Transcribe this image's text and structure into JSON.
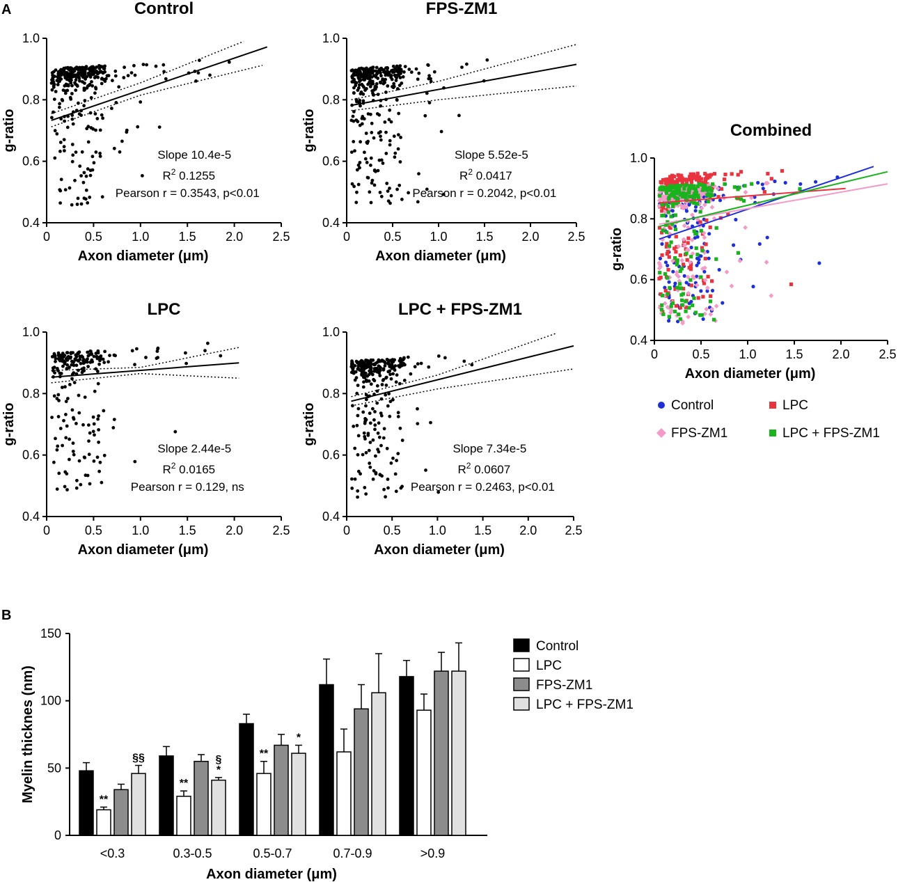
{
  "panels": {
    "a": "A",
    "b": "B"
  },
  "chart_data": [
    {
      "type": "scatter",
      "title": "Control",
      "xlabel": "Axon diameter (μm)",
      "ylabel": "g-ratio",
      "xlim": [
        0,
        2.5
      ],
      "ylim": [
        0.4,
        1.0
      ],
      "xticks": [
        "0",
        "0.5",
        "1.0",
        "1.5",
        "2.0",
        "2.5"
      ],
      "yticks": [
        "0.4",
        "0.6",
        "0.8",
        "1.0"
      ],
      "fit": {
        "x": [
          0.05,
          2.35
        ],
        "y": [
          0.733,
          0.972
        ]
      },
      "ci_upper": {
        "x": [
          0.05,
          1.0,
          2.1
        ],
        "y": [
          0.755,
          0.855,
          0.99
        ]
      },
      "ci_lower": {
        "x": [
          0.05,
          1.0,
          2.3
        ],
        "y": [
          0.712,
          0.815,
          0.912
        ]
      },
      "stats": {
        "slope_label": "Slope",
        "slope": "10.4e-5",
        "r2_label": "R",
        "r2_exp": "2",
        "r2": "0.1255",
        "pearson": "Pearson r = 0.3543, p<0.01"
      },
      "n_points": 330,
      "x_mean": 0.5,
      "y_mean": 0.8,
      "seed": 11
    },
    {
      "type": "scatter",
      "title": "FPS-ZM1",
      "xlabel": "Axon diameter (μm)",
      "ylabel": "g-ratio",
      "xlim": [
        0,
        2.5
      ],
      "ylim": [
        0.4,
        1.0
      ],
      "xticks": [
        "0",
        "0.5",
        "1.0",
        "1.5",
        "2.0",
        "2.5"
      ],
      "yticks": [
        "0.4",
        "0.6",
        "0.8",
        "1.0"
      ],
      "fit": {
        "x": [
          0.05,
          2.5
        ],
        "y": [
          0.782,
          0.915
        ]
      },
      "ci_upper": {
        "x": [
          0.05,
          1.0,
          2.5
        ],
        "y": [
          0.8,
          0.86,
          0.98
        ]
      },
      "ci_lower": {
        "x": [
          0.05,
          1.0,
          2.5
        ],
        "y": [
          0.765,
          0.8,
          0.845
        ]
      },
      "stats": {
        "slope_label": "Slope",
        "slope": "5.52e-5",
        "r2_label": "R",
        "r2_exp": "2",
        "r2": "0.0417",
        "pearson": "Pearson r = 0.2042, p<0.01"
      },
      "n_points": 320,
      "x_mean": 0.45,
      "y_mean": 0.8,
      "seed": 23
    },
    {
      "type": "scatter",
      "title": "LPC",
      "xlabel": "Axon diameter (μm)",
      "ylabel": "g-ratio",
      "xlim": [
        0,
        2.5
      ],
      "ylim": [
        0.4,
        1.0
      ],
      "xticks": [
        "0",
        "0.5",
        "1.0",
        "1.5",
        "2.0",
        "2.5"
      ],
      "yticks": [
        "0.4",
        "0.6",
        "0.8",
        "1.0"
      ],
      "fit": {
        "x": [
          0.05,
          2.05
        ],
        "y": [
          0.853,
          0.9
        ]
      },
      "ci_upper": {
        "x": [
          0.05,
          1.0,
          2.05
        ],
        "y": [
          0.875,
          0.885,
          0.95
        ]
      },
      "ci_lower": {
        "x": [
          0.05,
          1.0,
          2.05
        ],
        "y": [
          0.835,
          0.865,
          0.85
        ]
      },
      "stats": {
        "slope_label": "Slope",
        "slope": "2.44e-5",
        "r2_label": "R",
        "r2_exp": "2",
        "r2": "0.0165",
        "pearson": "Pearson r = 0.129, ns"
      },
      "n_points": 220,
      "x_mean": 0.5,
      "y_mean": 0.86,
      "seed": 37
    },
    {
      "type": "scatter",
      "title": "LPC + FPS-ZM1",
      "xlabel": "Axon diameter (μm)",
      "ylabel": "g-ratio",
      "xlim": [
        0,
        2.5
      ],
      "ylim": [
        0.4,
        1.0
      ],
      "xticks": [
        "0",
        "0.5",
        "1.0",
        "1.5",
        "2.0",
        "2.5"
      ],
      "yticks": [
        "0.4",
        "0.6",
        "0.8",
        "1.0"
      ],
      "fit": {
        "x": [
          0.05,
          2.5
        ],
        "y": [
          0.775,
          0.955
        ]
      },
      "ci_upper": {
        "x": [
          0.05,
          1.0,
          2.3
        ],
        "y": [
          0.79,
          0.86,
          0.995
        ]
      },
      "ci_lower": {
        "x": [
          0.05,
          1.0,
          2.5
        ],
        "y": [
          0.76,
          0.815,
          0.88
        ]
      },
      "stats": {
        "slope_label": "Slope",
        "slope": "7.34e-5",
        "r2_label": "R",
        "r2_exp": "2",
        "r2": "0.0607",
        "pearson": "Pearson r = 0.2463, p<0.01"
      },
      "n_points": 300,
      "x_mean": 0.4,
      "y_mean": 0.81,
      "seed": 53
    },
    {
      "type": "scatter",
      "title": "Combined",
      "xlabel": "Axon diameter (μm)",
      "ylabel": "g-ratio",
      "xlim": [
        0,
        2.5
      ],
      "ylim": [
        0.4,
        1.0
      ],
      "xticks": [
        "0",
        "0.5",
        "1.0",
        "1.5",
        "2.0",
        "2.5"
      ],
      "yticks": [
        "0.4",
        "0.6",
        "0.8",
        "1.0"
      ],
      "series": [
        {
          "name": "Control",
          "color": "#1f2fd6",
          "marker": "circle",
          "fit": {
            "x": [
              0.05,
              2.35
            ],
            "y": [
              0.733,
              0.972
            ]
          },
          "n_points": 250,
          "seed": 11
        },
        {
          "name": "LPC",
          "color": "#e8343f",
          "marker": "square",
          "fit": {
            "x": [
              0.05,
              2.05
            ],
            "y": [
              0.853,
              0.9
            ]
          },
          "n_points": 200,
          "seed": 37
        },
        {
          "name": "FPS-ZM1",
          "color": "#f29ac8",
          "marker": "diamond",
          "fit": {
            "x": [
              0.05,
              2.5
            ],
            "y": [
              0.782,
              0.915
            ]
          },
          "n_points": 250,
          "seed": 23
        },
        {
          "name": "LPC + FPS-ZM1",
          "color": "#19b31e",
          "marker": "square",
          "fit": {
            "x": [
              0.05,
              2.5
            ],
            "y": [
              0.775,
              0.955
            ]
          },
          "n_points": 200,
          "seed": 53
        }
      ]
    },
    {
      "type": "bar",
      "title": "",
      "xlabel": "Axon diameter (μm)",
      "ylabel": "Myelin thicknes (nm)",
      "ylim": [
        0,
        150
      ],
      "yticks": [
        "0",
        "50",
        "100",
        "150"
      ],
      "categories": [
        "<0.3",
        "0.3-0.5",
        "0.5-0.7",
        "0.7-0.9",
        ">0.9"
      ],
      "series": [
        {
          "name": "Control",
          "color": "#000000",
          "values": [
            48,
            59,
            83,
            112,
            118
          ],
          "errors": [
            6,
            7,
            7,
            19,
            12
          ]
        },
        {
          "name": "LPC",
          "color": "#ffffff",
          "values": [
            19,
            29,
            46,
            62,
            93
          ],
          "errors": [
            2,
            4,
            9,
            17,
            12
          ]
        },
        {
          "name": "FPS-ZM1",
          "color": "#8c8c8c",
          "values": [
            34,
            55,
            67,
            94,
            122
          ],
          "errors": [
            4,
            5,
            8,
            18,
            14
          ]
        },
        {
          "name": "LPC + FPS-ZM1",
          "color": "#e0e0e0",
          "values": [
            46,
            41,
            61,
            106,
            122
          ],
          "errors": [
            6,
            2,
            6,
            29,
            21
          ]
        }
      ],
      "annotations": [
        {
          "category": 0,
          "series": 1,
          "text": "**"
        },
        {
          "category": 0,
          "series": 3,
          "text": "§§"
        },
        {
          "category": 1,
          "series": 1,
          "text": "**"
        },
        {
          "category": 1,
          "series": 3,
          "text": "*"
        },
        {
          "category": 1,
          "series": 3,
          "text": "§"
        },
        {
          "category": 2,
          "series": 1,
          "text": "**"
        },
        {
          "category": 2,
          "series": 3,
          "text": "*"
        }
      ]
    }
  ]
}
